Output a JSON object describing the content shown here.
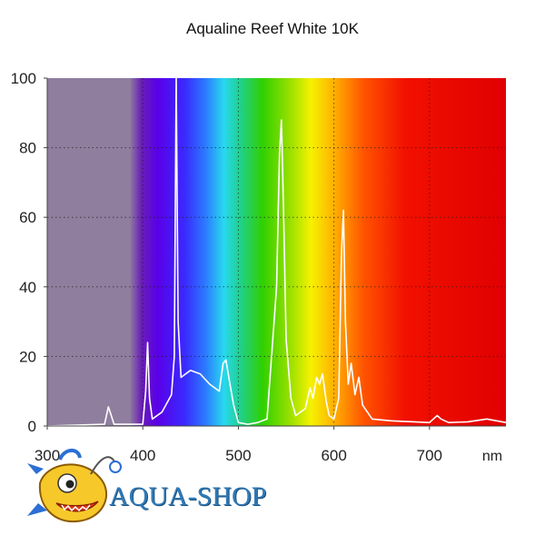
{
  "chart_data": {
    "type": "line",
    "title": "Aqualine Reef White 10K",
    "xlabel": "nm",
    "ylabel": "",
    "xlim": [
      300,
      780
    ],
    "ylim": [
      0,
      100
    ],
    "x_ticks": [
      "300",
      "400",
      "500",
      "600",
      "700"
    ],
    "y_ticks": [
      "0",
      "20",
      "40",
      "60",
      "80",
      "100"
    ],
    "grid": "dotted",
    "background": "visible color spectrum",
    "series": [
      {
        "color": "#ffffff",
        "x": [
          300,
          360,
          364,
          367,
          370,
          380,
          400,
          403,
          405,
          407,
          410,
          420,
          430,
          433,
          435,
          437,
          440,
          450,
          460,
          470,
          480,
          484,
          487,
          490,
          495,
          500,
          510,
          520,
          530,
          540,
          543,
          545,
          547,
          550,
          555,
          560,
          570,
          575,
          578,
          582,
          585,
          588,
          592,
          595,
          600,
          605,
          608,
          610,
          612,
          615,
          618,
          622,
          626,
          630,
          640,
          660,
          700,
          708,
          712,
          720,
          740,
          760,
          780
        ],
        "y": [
          0,
          0.5,
          5.5,
          3,
          0.5,
          0.5,
          0.5,
          10,
          24,
          8,
          2,
          4,
          9,
          20,
          100,
          30,
          14,
          16,
          15,
          12,
          10,
          18,
          19,
          14,
          6,
          1,
          0.5,
          1,
          2,
          40,
          78,
          88,
          65,
          25,
          8,
          3,
          5,
          11,
          8,
          14,
          12,
          15,
          7,
          3,
          2,
          8,
          50,
          62,
          30,
          12,
          18,
          9,
          14,
          6,
          2,
          1.5,
          1,
          3,
          2,
          1,
          1.2,
          2,
          1
        ]
      }
    ]
  },
  "logo": {
    "text": "AQUA-SHOP",
    "colors": {
      "text": "#2e7ab8",
      "fish_body": "#f7c82a",
      "fish_fin": "#2b6fd6"
    },
    "icon": "anglerfish-icon"
  }
}
